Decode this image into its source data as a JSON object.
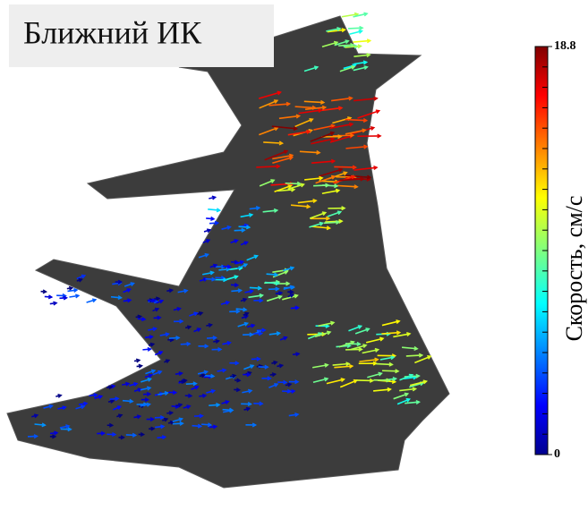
{
  "label": "Ближний ИК",
  "colorbar": {
    "title": "Скорость, см/с",
    "min": 0,
    "max": 18.8,
    "tick_labels": [
      {
        "value": 0,
        "label": "0"
      },
      {
        "value": 18.8,
        "label": "18.8"
      }
    ]
  }
}
